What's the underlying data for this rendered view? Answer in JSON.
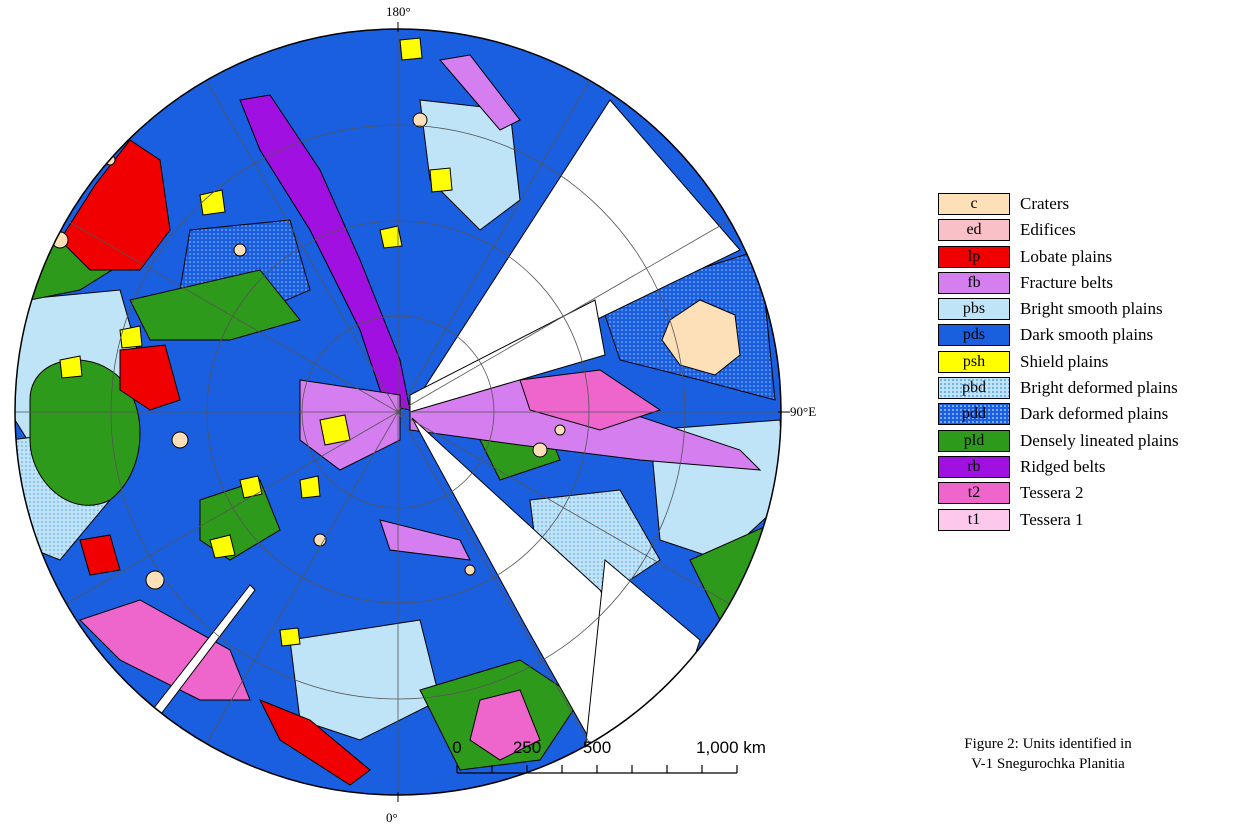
{
  "map": {
    "labels": {
      "top": "180°",
      "right": "90°E",
      "bottom": "0°"
    },
    "units": {
      "pds": "#1a5fe0",
      "pbs": "#bfe3f7",
      "pld": "#2e9a1c",
      "rb": "#a010e0",
      "fb": "#d47ef0",
      "lp": "#f00000",
      "psh": "#ffff00",
      "t2": "#ee66cc",
      "c": "#fde0b8"
    }
  },
  "legend": [
    {
      "code": "c",
      "name": "Craters",
      "color": "#fde0b8"
    },
    {
      "code": "ed",
      "name": "Edifices",
      "color": "#f9c0c8"
    },
    {
      "code": "lp",
      "name": "Lobate plains",
      "color": "#f00000"
    },
    {
      "code": "fb",
      "name": "Fracture belts",
      "color": "#d47ef0"
    },
    {
      "code": "pbs",
      "name": "Bright smooth plains",
      "color": "#bfe3f7"
    },
    {
      "code": "pds",
      "name": "Dark smooth plains",
      "color": "#1a5fe0"
    },
    {
      "code": "psh",
      "name": "Shield plains",
      "color": "#ffff00"
    },
    {
      "code": "pbd",
      "name": "Bright deformed plains",
      "color": "#bfe3f7",
      "dotted": true
    },
    {
      "code": "pdd",
      "name": "Dark deformed plains",
      "color": "#1a5fe0",
      "dotted": true
    },
    {
      "code": "pld",
      "name": "Densely lineated plains",
      "color": "#2e9a1c"
    },
    {
      "code": "rb",
      "name": "Ridged belts",
      "color": "#a010e0"
    },
    {
      "code": "t2",
      "name": "Tessera 2",
      "color": "#ee66cc"
    },
    {
      "code": "t1",
      "name": "Tessera 1",
      "color": "#fcc8ec"
    }
  ],
  "caption": {
    "line1": "Figure 2: Units identified in",
    "line2": "V-1 Snegurochka Planitia"
  },
  "scale_bar": {
    "labels": [
      "0",
      "250",
      "500",
      "1,000 km"
    ],
    "values": [
      0,
      250,
      500,
      1000
    ]
  }
}
